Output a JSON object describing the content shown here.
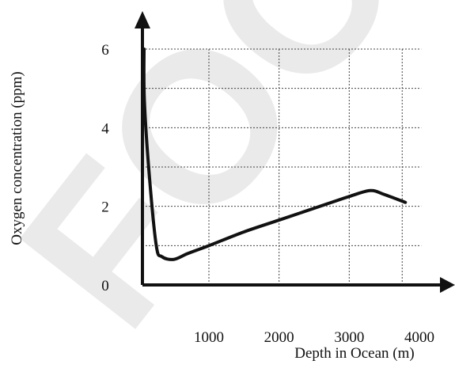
{
  "chart_data": {
    "type": "line",
    "title": "",
    "xlabel": "Depth in Ocean (m)",
    "ylabel": "Oxygen concentration (ppm)",
    "xlim": [
      0,
      4000
    ],
    "ylim": [
      0,
      6.4
    ],
    "x_ticks": [
      "1000",
      "2000",
      "3000",
      "4000"
    ],
    "y_ticks": [
      "0",
      "2",
      "4",
      "6"
    ],
    "grid": true,
    "grid_style": "dashed",
    "series": [
      {
        "x": [
          0,
          80,
          150,
          250,
          330,
          500,
          700,
          1000,
          1500,
          2000,
          2500,
          3000,
          3300,
          3500,
          3800
        ],
        "y": [
          6.0,
          4.7,
          2.8,
          1.0,
          0.72,
          0.65,
          0.8,
          1.0,
          1.35,
          1.65,
          1.95,
          2.25,
          2.4,
          2.3,
          2.1
        ]
      }
    ],
    "line_color": "#111111"
  },
  "watermark_text": "FOCUS",
  "watermark_color": "#d9d9d9"
}
